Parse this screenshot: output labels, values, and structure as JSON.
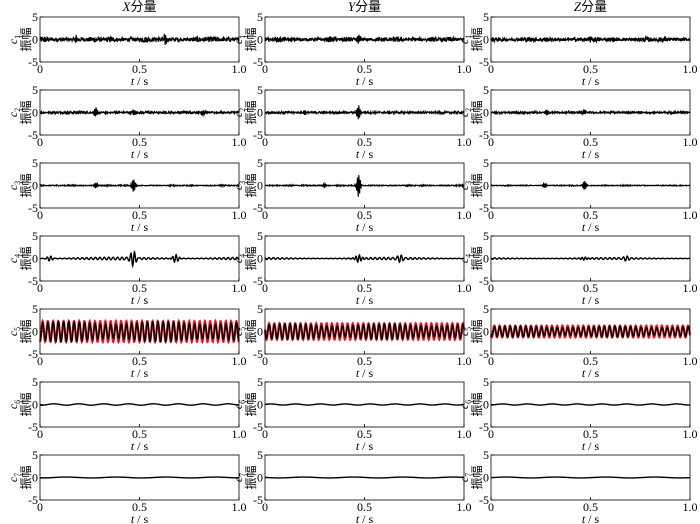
{
  "chart_data": {
    "type": "line",
    "layout": "7 rows x 3 columns grid of small multiples",
    "columns": [
      {
        "title_italic": "X",
        "title_rest": "分量"
      },
      {
        "title_italic": "Y",
        "title_rest": "分量"
      },
      {
        "title_italic": "Z",
        "title_rest": "分量"
      }
    ],
    "rows": [
      "c1",
      "c2",
      "c3",
      "c4",
      "c5",
      "c6",
      "c7"
    ],
    "row_label_letter": "c",
    "row_label_subscripts": [
      "1",
      "2",
      "3",
      "4",
      "5",
      "6",
      "7"
    ],
    "ylabel": "振幅",
    "xlabel_italic": "t",
    "xlabel_rest": " / s",
    "xlim": [
      0,
      1.0
    ],
    "ylim": [
      -5,
      5
    ],
    "xticks": [
      "0",
      "0.5",
      "1.0"
    ],
    "yticks": [
      "5",
      "0",
      "-5"
    ],
    "grid": false,
    "colors": {
      "signal": "#000000",
      "reference": "#e8141e"
    },
    "panels": [
      [
        {
          "kind": "noise",
          "amplitude": 0.7,
          "bursts": [
            [
              0.18,
              0.9
            ],
            [
              0.63,
              0.8
            ]
          ]
        },
        {
          "kind": "noise",
          "amplitude": 0.35,
          "bursts": [
            [
              0.28,
              1.0
            ],
            [
              0.47,
              0.7
            ],
            [
              0.82,
              0.6
            ]
          ]
        },
        {
          "kind": "noise",
          "amplitude": 0.15,
          "bursts": [
            [
              0.28,
              0.7
            ],
            [
              0.47,
              1.5
            ]
          ]
        },
        {
          "kind": "wave",
          "amplitude": 0.3,
          "frequency_hz": 45,
          "bursts": [
            [
              0.47,
              1.5
            ],
            [
              0.68,
              0.9
            ],
            [
              0.05,
              0.5
            ]
          ]
        },
        {
          "kind": "sine",
          "amplitude": 2.2,
          "frequency_hz": 38,
          "reference_amplitude": 2.3
        },
        {
          "kind": "sine",
          "amplitude": 0.15,
          "frequency_hz": 8
        },
        {
          "kind": "sine",
          "amplitude": 0.1,
          "frequency_hz": 4
        }
      ],
      [
        {
          "kind": "noise",
          "amplitude": 0.6,
          "bursts": [
            [
              0.47,
              0.9
            ]
          ]
        },
        {
          "kind": "noise",
          "amplitude": 0.3,
          "bursts": [
            [
              0.47,
              1.6
            ],
            [
              0.2,
              0.5
            ]
          ]
        },
        {
          "kind": "noise",
          "amplitude": 0.15,
          "bursts": [
            [
              0.47,
              2.6
            ],
            [
              0.3,
              0.4
            ]
          ]
        },
        {
          "kind": "wave",
          "amplitude": 0.25,
          "frequency_hz": 45,
          "bursts": [
            [
              0.47,
              1.0
            ],
            [
              0.68,
              0.6
            ]
          ]
        },
        {
          "kind": "sine",
          "amplitude": 1.7,
          "frequency_hz": 38,
          "reference_amplitude": 1.8
        },
        {
          "kind": "sine",
          "amplitude": 0.12,
          "frequency_hz": 8
        },
        {
          "kind": "sine",
          "amplitude": 0.1,
          "frequency_hz": 4
        }
      ],
      [
        {
          "kind": "noise",
          "amplitude": 0.6,
          "bursts": [
            [
              0.5,
              0.8
            ]
          ]
        },
        {
          "kind": "noise",
          "amplitude": 0.3,
          "bursts": [
            [
              0.47,
              0.6
            ],
            [
              0.28,
              0.5
            ]
          ]
        },
        {
          "kind": "noise",
          "amplitude": 0.12,
          "bursts": [
            [
              0.27,
              0.5
            ],
            [
              0.47,
              1.0
            ]
          ]
        },
        {
          "kind": "wave",
          "amplitude": 0.2,
          "frequency_hz": 45,
          "bursts": [
            [
              0.47,
              0.5
            ],
            [
              0.68,
              0.4
            ]
          ]
        },
        {
          "kind": "sine",
          "amplitude": 1.2,
          "frequency_hz": 38,
          "reference_amplitude": 1.3
        },
        {
          "kind": "sine",
          "amplitude": 0.12,
          "frequency_hz": 8
        },
        {
          "kind": "sine",
          "amplitude": 0.1,
          "frequency_hz": 4
        }
      ]
    ]
  }
}
